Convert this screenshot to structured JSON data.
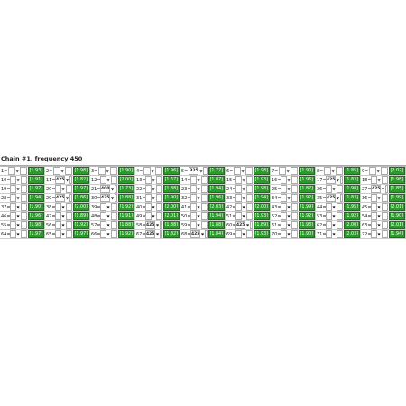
{
  "header": {
    "title": "Chain #1, frequency 450"
  },
  "table": {
    "rows": [
      [
        {
          "label": "1=",
          "value": "[1.93]"
        },
        {
          "label": "2=",
          "value": "[1.98]"
        },
        {
          "label": "3=",
          "value": "[1.90]"
        },
        {
          "label": "4=",
          "value": "[1.96]"
        },
        {
          "label": "5=",
          "input": "325",
          "value": "[1.77]"
        },
        {
          "label": "6=",
          "value": "[1.98]"
        },
        {
          "label": "7=",
          "value": "[1.90]"
        },
        {
          "label": "8=",
          "value": "[1.85]"
        },
        {
          "label": "9=",
          "value": "[2.02]"
        }
      ],
      [
        {
          "label": "10=",
          "value": "[1.91]"
        },
        {
          "label": "11=",
          "input": "425",
          "value": "[1.82]"
        },
        {
          "label": "12=",
          "value": "[2.00]"
        },
        {
          "label": "13=",
          "value": "[1.67]"
        },
        {
          "label": "14=",
          "value": "[1.87]"
        },
        {
          "label": "15=",
          "value": "[1.93]"
        },
        {
          "label": "16=",
          "value": "[1.96]"
        },
        {
          "label": "17=",
          "input": "425",
          "value": "[1.83]"
        },
        {
          "label": "18=",
          "value": "[1.98]"
        }
      ],
      [
        {
          "label": "19=",
          "value": "[1.97]"
        },
        {
          "label": "20=",
          "value": "[1.97]"
        },
        {
          "label": "21=",
          "input": "400",
          "value": "[1.73]"
        },
        {
          "label": "22=",
          "value": "[1.88]"
        },
        {
          "label": "23=",
          "value": "[1.94]"
        },
        {
          "label": "24=",
          "value": "[1.98]"
        },
        {
          "label": "25=",
          "value": "[1.87]"
        },
        {
          "label": "26=",
          "value": "[1.98]"
        },
        {
          "label": "27=",
          "input": "425",
          "value": "[1.85]"
        }
      ],
      [
        {
          "label": "28=",
          "value": "[1.94]"
        },
        {
          "label": "29=",
          "input": "425",
          "value": "[1.86]"
        },
        {
          "label": "30=",
          "input": "425",
          "value": "[1.88]"
        },
        {
          "label": "31=",
          "value": "[1.90]"
        },
        {
          "label": "32=",
          "value": "[1.96]"
        },
        {
          "label": "33=",
          "value": "[1.94]"
        },
        {
          "label": "34=",
          "value": "[1.92]"
        },
        {
          "label": "35=",
          "input": "425",
          "value": "[1.83]"
        },
        {
          "label": "36=",
          "value": "[1.99]"
        }
      ],
      [
        {
          "label": "37=",
          "value": "[1.90]"
        },
        {
          "label": "38=",
          "value": "[2.00]"
        },
        {
          "label": "39=",
          "value": "[1.92]"
        },
        {
          "label": "40=",
          "value": "[2.00]"
        },
        {
          "label": "41=",
          "value": "[2.03]"
        },
        {
          "label": "42=",
          "value": "[2.00]"
        },
        {
          "label": "43=",
          "value": "[1.99]"
        },
        {
          "label": "44=",
          "value": "[1.95]"
        },
        {
          "label": "45=",
          "value": "[2.01]"
        }
      ],
      [
        {
          "label": "46=",
          "value": "[1.96]"
        },
        {
          "label": "47=",
          "value": "[1.89]"
        },
        {
          "label": "48=",
          "value": "[1.91]"
        },
        {
          "label": "49=",
          "value": "[2.01]"
        },
        {
          "label": "50=",
          "value": "[1.94]"
        },
        {
          "label": "51=",
          "value": "[1.93]"
        },
        {
          "label": "52=",
          "value": "[1.92]"
        },
        {
          "label": "53=",
          "value": "[1.92]"
        },
        {
          "label": "54=",
          "value": "[1.90]"
        }
      ],
      [
        {
          "label": "55=",
          "value": "[1.98]"
        },
        {
          "label": "56=",
          "value": "[1.92]"
        },
        {
          "label": "57=",
          "value": "[1.88]"
        },
        {
          "label": "58=",
          "input": "425",
          "value": "[1.88]"
        },
        {
          "label": "59=",
          "value": "[1.88]"
        },
        {
          "label": "60=",
          "input": "425",
          "value": "[1.89]"
        },
        {
          "label": "61=",
          "value": "[1.93]"
        },
        {
          "label": "62=",
          "value": "[2.00]"
        },
        {
          "label": "63=",
          "value": "[2.01]"
        }
      ],
      [
        {
          "label": "64=",
          "value": "[1.97]"
        },
        {
          "label": "65=",
          "value": "[1.97]"
        },
        {
          "label": "66=",
          "value": "[1.92]"
        },
        {
          "label": "67=",
          "input": "425",
          "value": "[1.82]"
        },
        {
          "label": "68=",
          "input": "425",
          "value": "[1.84]"
        },
        {
          "label": "69=",
          "value": "[1.93]"
        },
        {
          "label": "70=",
          "value": "[1.90]"
        },
        {
          "label": "71=",
          "value": "[2.03]"
        },
        {
          "label": "72=",
          "value": "[1.94]"
        }
      ]
    ]
  }
}
